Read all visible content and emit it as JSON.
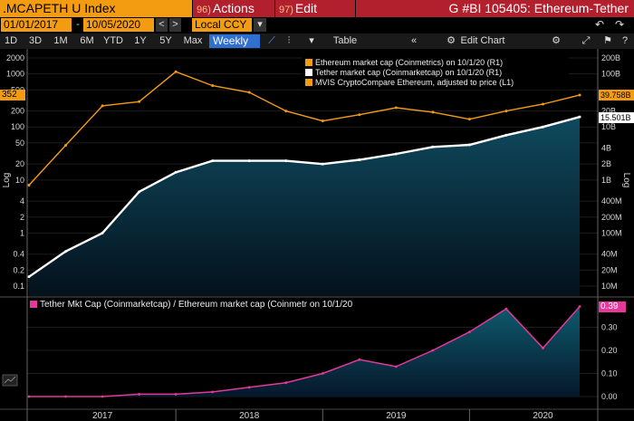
{
  "header": {
    "ticker": ".MCAPETH U Index",
    "actions_num": "96)",
    "actions_label": "Actions",
    "edit_num": "97)",
    "edit_label": "Edit",
    "title": "G #BI 105405: Ethereum-Tether"
  },
  "toolbar": {
    "start_date": "01/01/2017",
    "end_date": "10/05/2020",
    "currency": "Local CCY",
    "ranges": [
      "1D",
      "3D",
      "1M",
      "6M",
      "YTD",
      "1Y",
      "5Y",
      "Max"
    ],
    "period": "Weekly ▼",
    "table_label": "Table",
    "edit_chart_label": "Edit Chart"
  },
  "colors": {
    "orange": "#f39c12",
    "white": "#ffffff",
    "pink": "#e5389a",
    "accent_red": "#b21f2d",
    "area_top": "#0f4a5e"
  },
  "chart_data": [
    {
      "type": "line",
      "legend": [
        "Ethereum market cap (Coinmetrics) on 10/1/20 (R1)",
        "Tether market cap (Coinmarketcap) on 10/1/20 (R1)",
        "MVIS CryptoCompare Ethereum, adjusted to price (L1)"
      ],
      "left_axis": {
        "scale": "log",
        "ticks": [
          "2000",
          "1000",
          "500",
          "200",
          "100",
          "50",
          "20",
          "10",
          "4",
          "2",
          "1",
          "0.4",
          "0.2",
          "0.1"
        ],
        "label": "Log",
        "last_value_label": "352"
      },
      "right_axis": {
        "scale": "log",
        "ticks": [
          "200B",
          "100B",
          "40B",
          "20B",
          "10B",
          "4B",
          "2B",
          "1B",
          "400M",
          "200M",
          "100M",
          "40M",
          "20M",
          "10M"
        ],
        "label": "Log",
        "last_value_labels": [
          "39.758B",
          "15.501B"
        ]
      },
      "x": [
        "2017-01",
        "2017-04",
        "2017-07",
        "2017-10",
        "2018-01",
        "2018-04",
        "2018-07",
        "2018-10",
        "2019-01",
        "2019-04",
        "2019-07",
        "2019-10",
        "2020-01",
        "2020-04",
        "2020-07",
        "2020-10"
      ],
      "series": [
        {
          "name": "Ethereum market cap (Coinmetrics) on 10/1/20 (R1)",
          "color": "#f39c12",
          "values": [
            0.8,
            4.5,
            25,
            30,
            110,
            60,
            45,
            20,
            13,
            17,
            23,
            19,
            14,
            20,
            27,
            40
          ]
        },
        {
          "name": "Tether market cap (Coinmarketcap) on 10/1/20 (R1)",
          "color": "#ffffff",
          "values": [
            0.015,
            0.045,
            0.1,
            0.6,
            1.4,
            2.3,
            2.3,
            2.3,
            2.0,
            2.4,
            3.1,
            4.2,
            4.6,
            7.0,
            10,
            15.5
          ]
        }
      ]
    },
    {
      "type": "area",
      "legend": [
        "Tether Mkt Cap (Coinmarketcap) / Ethereum market cap (Coinmetr on 10/1/20"
      ],
      "y_ticks": [
        "0.30",
        "0.20",
        "0.10",
        "0.00"
      ],
      "last_value_label": "0.39",
      "x_labels": [
        "2017",
        "2018",
        "2019",
        "2020"
      ],
      "series": [
        {
          "name": "Tether Mkt Cap (Coinmarketcap) / Ethereum market cap (Coinmetr on 10/1/20",
          "color": "#e5389a",
          "values": [
            0.0,
            0.0,
            0.0,
            0.01,
            0.01,
            0.02,
            0.04,
            0.06,
            0.1,
            0.16,
            0.13,
            0.2,
            0.28,
            0.38,
            0.21,
            0.39
          ]
        }
      ]
    }
  ]
}
